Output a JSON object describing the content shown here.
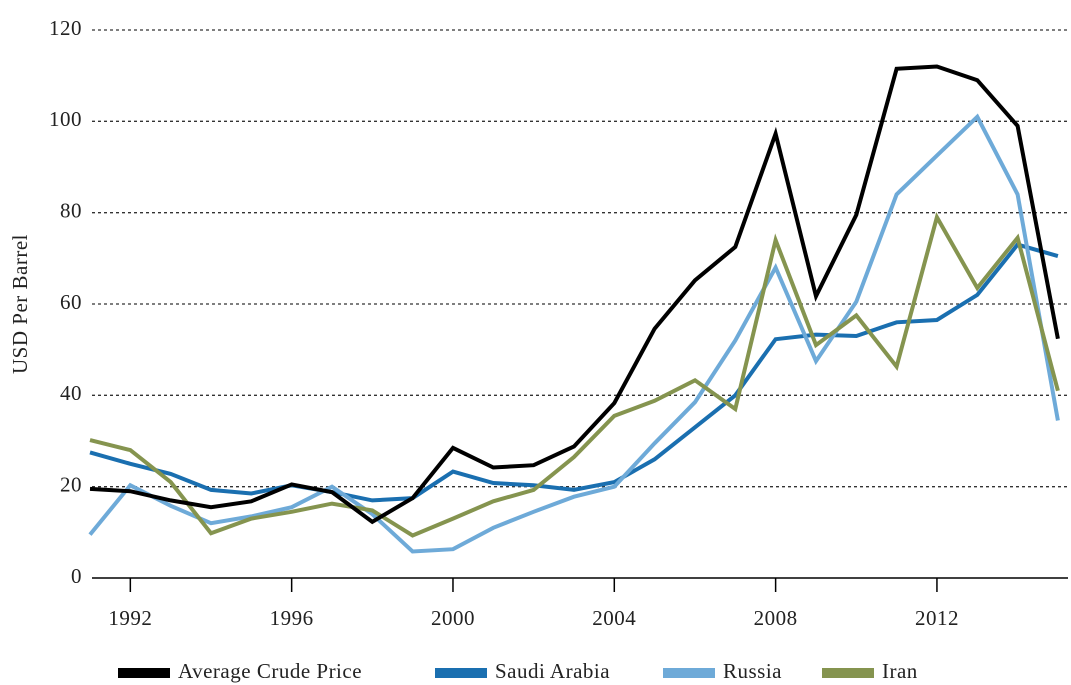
{
  "chart_data": {
    "type": "line",
    "y_label": "USD Per Barrel",
    "x": [
      1991,
      1992,
      1993,
      1994,
      1995,
      1996,
      1997,
      1998,
      1999,
      2000,
      2001,
      2002,
      2003,
      2004,
      2005,
      2006,
      2007,
      2008,
      2009,
      2010,
      2011,
      2012,
      2013,
      2014,
      2015
    ],
    "series": [
      {
        "name": "Average Crude Price",
        "color": "#000000",
        "values": [
          19.5,
          19,
          17,
          15.5,
          16.8,
          20.5,
          18.8,
          12.3,
          17.5,
          28.5,
          24.2,
          24.7,
          28.8,
          38.3,
          54.6,
          65.2,
          72.5,
          97.3,
          61.7,
          79.5,
          111.5,
          112,
          109,
          99,
          52.4
        ]
      },
      {
        "name": "Saudi Arabia",
        "color": "#1a6fb0",
        "values": [
          27.5,
          25,
          22.8,
          19.3,
          18.5,
          20.3,
          18.8,
          17,
          17.5,
          23.3,
          20.8,
          20.3,
          19.3,
          21,
          26,
          33,
          40,
          52.3,
          53.3,
          53,
          56,
          56.5,
          62,
          73,
          70.5
        ]
      },
      {
        "name": "Russia",
        "color": "#6eaad8",
        "values": [
          9.5,
          20.3,
          15.8,
          12,
          13.5,
          15.5,
          20,
          14,
          5.8,
          6.3,
          11,
          14.5,
          17.8,
          20,
          29.5,
          38.5,
          52,
          68,
          47.5,
          60.5,
          84,
          92.5,
          101,
          84,
          34.5
        ]
      },
      {
        "name": "Iran",
        "color": "#85944f",
        "values": [
          30.2,
          28,
          21,
          9.8,
          13,
          14.5,
          16.3,
          14.8,
          9.3,
          13,
          16.8,
          19.3,
          26.5,
          35.5,
          38.8,
          43.3,
          37,
          74,
          51,
          57.5,
          46.3,
          79,
          63.5,
          74.5,
          41
        ]
      }
    ],
    "xlim": [
      1991,
      2015.2
    ],
    "xticks": [
      1992,
      1996,
      2000,
      2004,
      2008,
      2012
    ],
    "ylim": [
      0,
      120
    ],
    "yticks": [
      0,
      20,
      40,
      60,
      80,
      100,
      120
    ],
    "grid": true,
    "legend": "bottom"
  }
}
